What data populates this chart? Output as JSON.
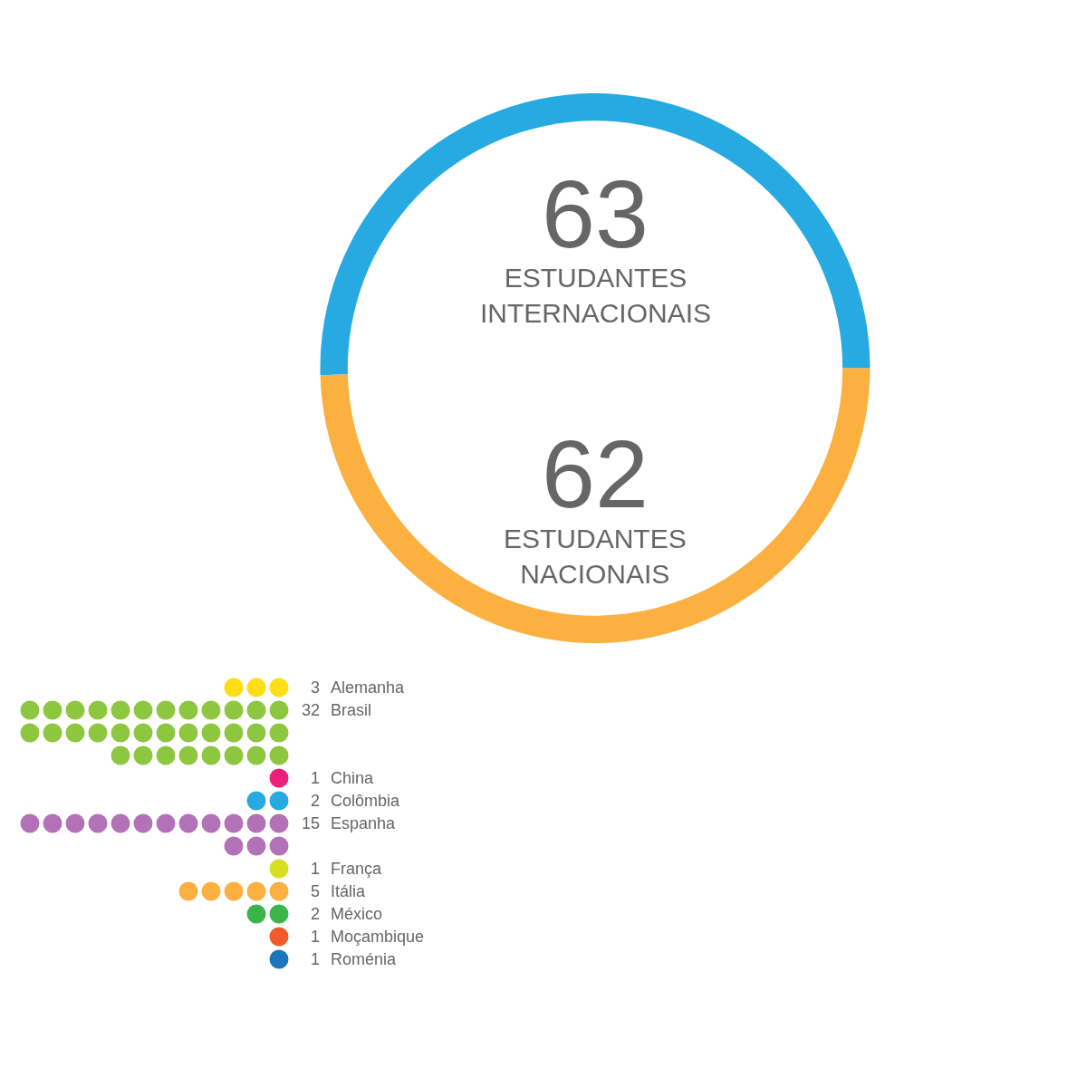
{
  "chart_data": [
    {
      "type": "donut",
      "categories": [
        "ESTUDANTES INTERNACIONAIS",
        "ESTUDANTES NACIONAIS"
      ],
      "values": [
        63,
        62
      ],
      "colors": [
        "#27a9e1",
        "#fbb040"
      ],
      "data_labels": true
    },
    {
      "type": "other",
      "categories": [
        "Alemanha",
        "Brasil",
        "China",
        "Colômbia",
        "Espanha",
        "França",
        "Itália",
        "México",
        "Moçambique",
        "Roménia"
      ],
      "values": [
        3,
        32,
        1,
        2,
        15,
        1,
        5,
        2,
        1,
        1
      ],
      "colors": [
        "#ffde17",
        "#8dc63f",
        "#ec2079",
        "#27aae1",
        "#b372b8",
        "#d7df23",
        "#fbb040",
        "#39b54a",
        "#f15a29",
        "#1c75bc"
      ],
      "data_labels": true
    }
  ]
}
